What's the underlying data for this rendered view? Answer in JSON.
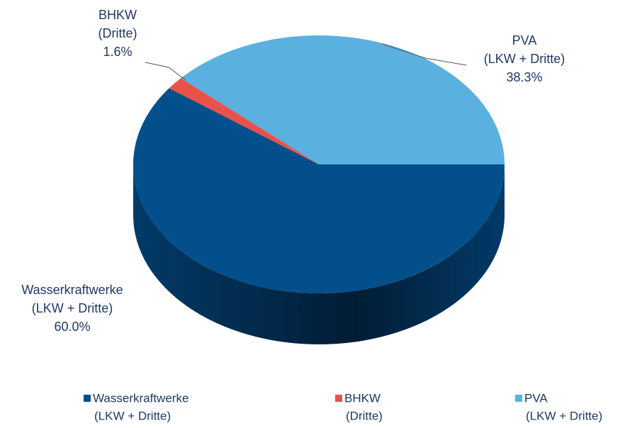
{
  "chart_data": {
    "type": "pie",
    "categories": [
      [
        "Wasserkraftwerke",
        "(LKW + Dritte)"
      ],
      [
        "BHKW",
        "(Dritte)"
      ],
      [
        "PVA",
        "(LKW + Dritte)"
      ]
    ],
    "values": [
      60.0,
      1.6,
      38.3
    ],
    "value_labels": [
      "60.0%",
      "1.6%",
      "38.3%"
    ],
    "colors": [
      "#034f8b",
      "#e8524a",
      "#5ab1e0"
    ],
    "legend": "bottom"
  }
}
